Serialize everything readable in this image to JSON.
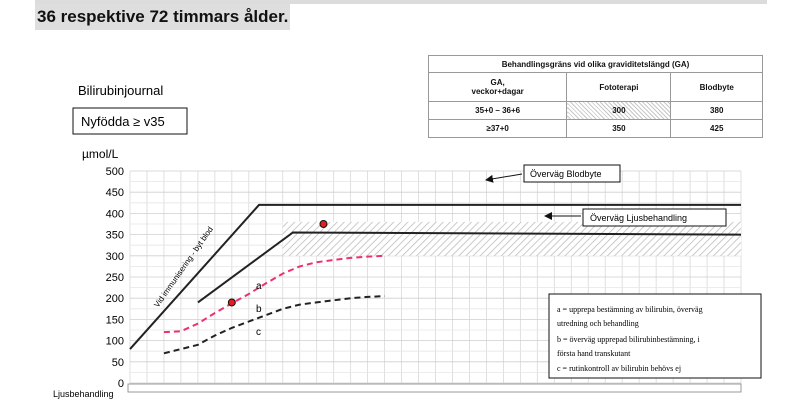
{
  "header": {
    "text": "36 respektive 72 timmars ålder."
  },
  "reference_table": {
    "title": "Behandlingsgräns vid olika graviditetslängd (GA)",
    "columns": [
      "GA,\nveckor+dagar",
      "Fototerapi",
      "Blodbyte"
    ],
    "rows": [
      [
        "35+0 – 36+6",
        "300",
        "380"
      ],
      [
        "≥37+0",
        "350",
        "425"
      ]
    ]
  },
  "chart_data": {
    "type": "line",
    "title": "Bilirubinjournal",
    "subtitle_box": "Nyfödda ≥ v35",
    "ylabel": "µmol/L",
    "xlabel": "Ljusbehandling",
    "ylim": [
      0,
      500
    ],
    "yticks": [
      "0",
      "50",
      "100",
      "150",
      "200",
      "250",
      "300",
      "350",
      "400",
      "450",
      "500"
    ],
    "xlim": [
      0,
      180
    ],
    "x_tick_labels_visible_partial": true,
    "grid": true,
    "series": [
      {
        "color": "#222222",
        "dash": "solid",
        "x": [
          0,
          38,
          180
        ],
        "y": [
          80,
          420,
          420
        ]
      },
      {
        "color": "#222222",
        "dash": "solid",
        "x": [
          20,
          48,
          180
        ],
        "y": [
          190,
          355,
          350
        ]
      },
      {
        "color": "#ee2f74",
        "dash": "dashed",
        "x": [
          10,
          15,
          20,
          25,
          30,
          35,
          40,
          45,
          50,
          55,
          60,
          65,
          70,
          75
        ],
        "y": [
          120,
          122,
          140,
          165,
          188,
          210,
          235,
          258,
          275,
          285,
          290,
          295,
          298,
          300
        ]
      },
      {
        "color": "#222222",
        "dash": "dashed",
        "x": [
          10,
          15,
          20,
          25,
          30,
          35,
          40,
          45,
          50,
          55,
          60,
          65,
          70,
          75
        ],
        "y": [
          70,
          80,
          90,
          112,
          130,
          145,
          160,
          175,
          185,
          190,
          195,
          200,
          203,
          205
        ]
      }
    ],
    "points": [
      {
        "x": 30,
        "y": 190,
        "color": "#e02020"
      },
      {
        "x": 57,
        "y": 375,
        "color": "#e02020"
      }
    ],
    "hatched_band": {
      "x": [
        45,
        180
      ],
      "y": [
        300,
        380
      ]
    },
    "annotations": [
      {
        "text": "Vid immunisering - byt blod"
      },
      {
        "text": "Överväg Blodbyte"
      },
      {
        "text": "Överväg Ljusbehandling"
      },
      {
        "text": "a"
      },
      {
        "text": "b"
      },
      {
        "text": "c"
      }
    ],
    "legend_box": [
      "a = upprepa bestämning av bilirubin, överväg utredning och behandling",
      "b = överväg upprepad bilirubinbestämning, i första hand transkutant",
      "c = rutinkontroll av bilirubin behövs ej"
    ],
    "legend_box_lines": [
      "a = upprepa bestämning av bilirubin, överväg",
      "utredning och behandling",
      "b = överväg upprepad bilirubinbestämning, i",
      "första hand transkutant",
      "c = rutinkontroll av bilirubin behövs ej"
    ]
  }
}
